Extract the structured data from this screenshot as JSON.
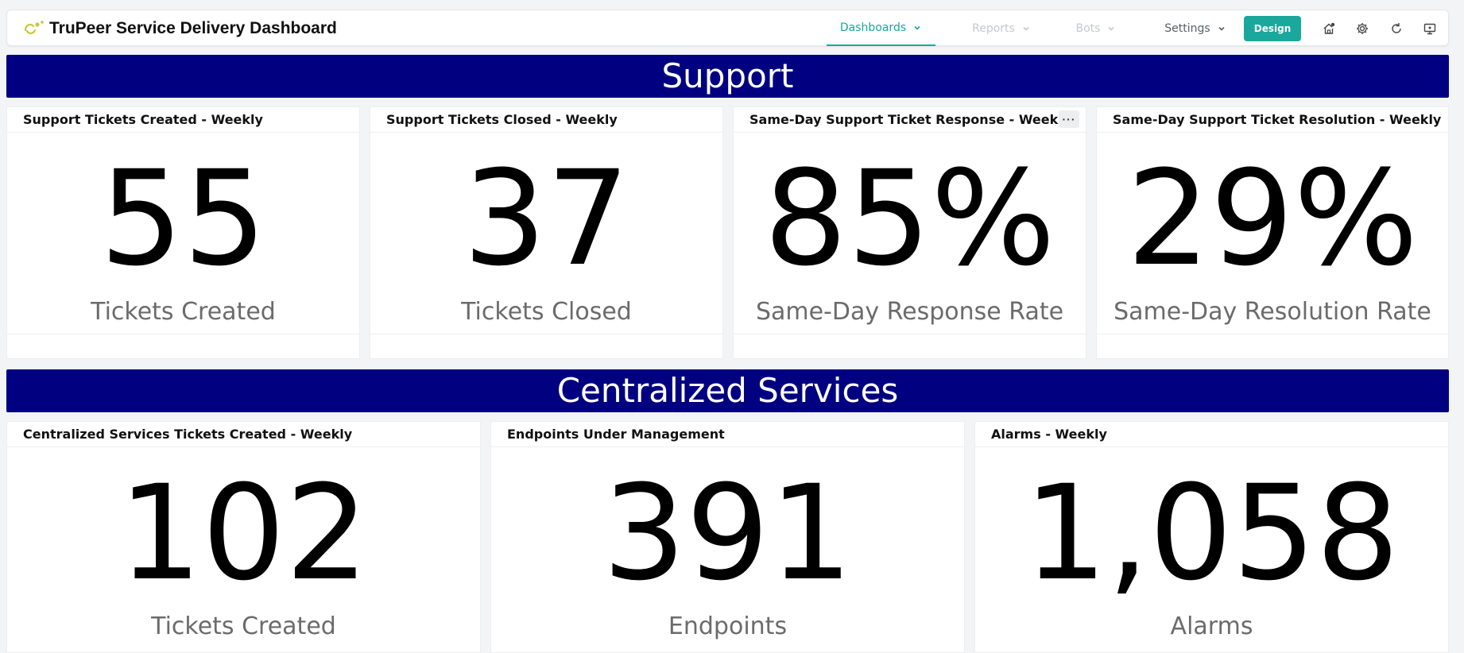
{
  "app": {
    "title": "TruPeer Service Delivery Dashboard"
  },
  "nav": {
    "items": [
      {
        "label": "Dashboards",
        "state": "active"
      },
      {
        "label": "Reports",
        "state": "disabled"
      },
      {
        "label": "Bots",
        "state": "disabled"
      },
      {
        "label": "Settings",
        "state": "normal"
      }
    ],
    "design_button": "Design",
    "icons": [
      "home-notification-icon",
      "gear-icon",
      "refresh-icon",
      "monitor-icon"
    ]
  },
  "colors": {
    "accent": "#1aa89c",
    "banner": "#000080",
    "card_bg": "#ffffff",
    "page_bg": "#f3f4f5"
  },
  "sections": [
    {
      "title": "Support",
      "cards": [
        {
          "title": "Support Tickets Created - Weekly",
          "value": "55",
          "label": "Tickets Created"
        },
        {
          "title": "Support Tickets Closed - Weekly",
          "value": "37",
          "label": "Tickets Closed"
        },
        {
          "title": "Same-Day Support Ticket Response - Weekly",
          "value": "85%",
          "label": "Same-Day Response Rate",
          "menu": "···"
        },
        {
          "title": "Same-Day Support Ticket Resolution - Weekly",
          "value": "29%",
          "label": "Same-Day Resolution Rate"
        }
      ]
    },
    {
      "title": "Centralized Services",
      "cards": [
        {
          "title": "Centralized Services Tickets Created - Weekly",
          "value": "102",
          "label": "Tickets Created"
        },
        {
          "title": "Endpoints Under Management",
          "value": "391",
          "label": "Endpoints"
        },
        {
          "title": "Alarms - Weekly",
          "value": "1,058",
          "label": "Alarms"
        }
      ]
    }
  ]
}
